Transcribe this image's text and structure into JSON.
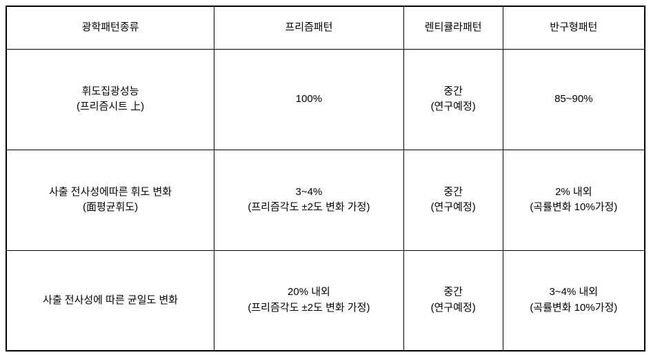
{
  "table": {
    "type": "table",
    "columns": [
      {
        "label": "광학패턴종류",
        "width": 0.25
      },
      {
        "label": "프리즘패턴",
        "width": 0.25
      },
      {
        "label": "렌티큘라패턴",
        "width": 0.25
      },
      {
        "label": "반구형패턴",
        "width": 0.25
      }
    ],
    "rows": [
      {
        "label_main": "휘도집광성능",
        "label_sub": "(프리즘시트 上)",
        "prism_main": "100%",
        "prism_sub": "",
        "lenti_main": "중간",
        "lenti_sub": "(연구예정)",
        "hemi_main": "85~90%",
        "hemi_sub": ""
      },
      {
        "label_main": "사출 전사성에따른 휘도 변화",
        "label_sub": "(面평균휘도)",
        "prism_main": "3~4%",
        "prism_sub": "(프리즘각도 ±2도 변화 가정)",
        "lenti_main": "중간",
        "lenti_sub": "(연구예정)",
        "hemi_main": "2% 내외",
        "hemi_sub": "(곡률변화 10%가정)"
      },
      {
        "label_main": "사출 전사성에 따른 균일도 변화",
        "label_sub": "",
        "prism_main": "20% 내외",
        "prism_sub": "(프리즘각도 ±2도 변화 가정)",
        "lenti_main": "중간",
        "lenti_sub": "(연구예정)",
        "hemi_main": "3~4% 내외",
        "hemi_sub": "(곡률변화 10%가정)"
      }
    ],
    "border_color": "#000000",
    "background_color": "#ffffff",
    "text_color": "#000000",
    "font_size": 15,
    "header_row_height": 62,
    "body_row_height": 146
  }
}
